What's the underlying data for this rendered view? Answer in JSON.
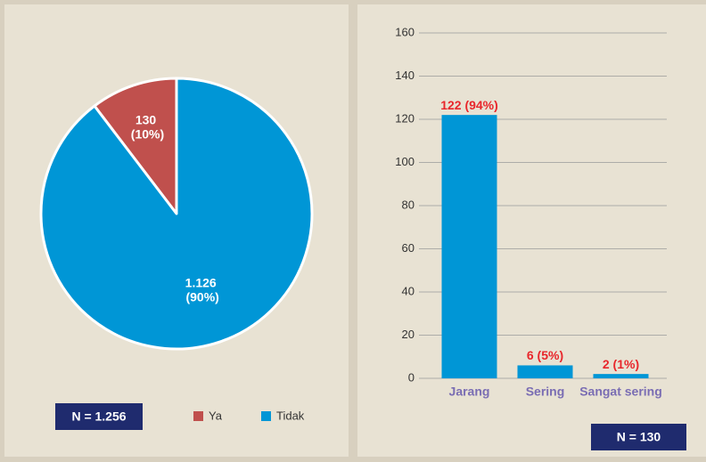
{
  "chart_data": [
    {
      "type": "pie",
      "categories": [
        "Ya",
        "Tidak"
      ],
      "values": [
        130,
        1126
      ],
      "value_labels": [
        "130 (10%)",
        "1.126 (90%)"
      ],
      "colors": [
        "#c0504d",
        "#0096d6"
      ],
      "annotation": "N = 1.256",
      "legend": "bottom"
    },
    {
      "type": "bar",
      "categories": [
        "Jarang",
        "Sering",
        "Sangat sering"
      ],
      "values": [
        122,
        6,
        2
      ],
      "value_labels": [
        "122 (94%)",
        "6 (5%)",
        "2 (1%)"
      ],
      "color": "#0096d6",
      "ylim": [
        0,
        160
      ],
      "yticks": [
        0,
        20,
        40,
        60,
        80,
        100,
        120,
        140,
        160
      ],
      "grid": true,
      "annotation": "N = 130"
    }
  ]
}
